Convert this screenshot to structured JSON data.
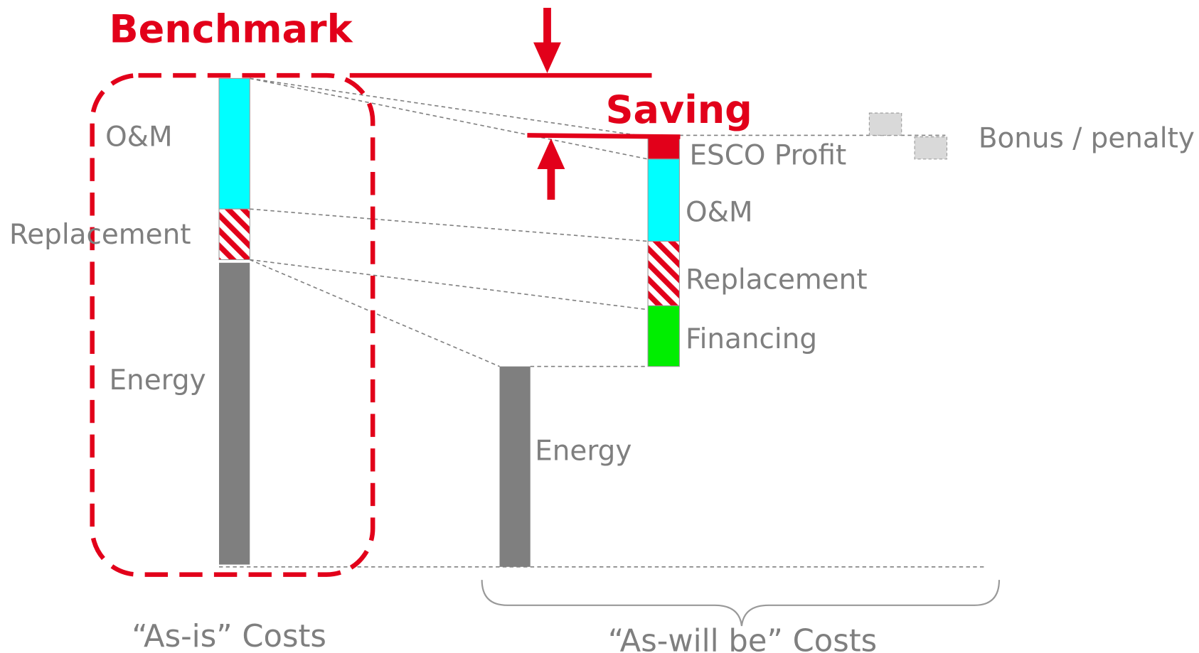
{
  "title": "Benchmark",
  "saving": "Saving",
  "bonus": "Bonus / penalty",
  "as_is": {
    "label": "“As-is” Costs",
    "segments": [
      "O&M",
      "Replacement",
      "Energy"
    ]
  },
  "as_will_be": {
    "label": "“As-will be” Costs",
    "segments": [
      "ESCO Profit",
      "O&M",
      "Replacement",
      "Financing",
      "Energy"
    ]
  }
}
